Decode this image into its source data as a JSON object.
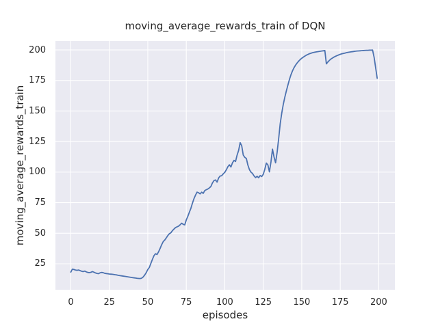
{
  "chart_data": {
    "type": "line",
    "title": "moving_average_rewards_train of DQN",
    "xlabel": "episodes",
    "ylabel": "moving_average_rewards_train",
    "legend": null,
    "grid": true,
    "plot_bg_color": "#EAEAF2",
    "grid_color": "#FFFFFF",
    "line_color": "#4C72B0",
    "text_color": "#262626",
    "xlim": [
      -10.0,
      210.5
    ],
    "ylim": [
      3.75,
      207.3
    ],
    "xticks": [
      0,
      25,
      50,
      75,
      100,
      125,
      150,
      175,
      200
    ],
    "yticks": [
      25,
      50,
      75,
      100,
      125,
      150,
      175,
      200
    ],
    "x_start": 0,
    "x_step": 1,
    "series": [
      {
        "name": "moving_average_rewards_train",
        "values": [
          18.2,
          20.6,
          20.3,
          19.9,
          19.6,
          19.9,
          19.4,
          18.9,
          18.6,
          19.0,
          18.4,
          17.9,
          17.7,
          18.0,
          18.6,
          18.1,
          17.5,
          17.1,
          16.9,
          17.6,
          17.9,
          17.7,
          17.2,
          17.0,
          16.8,
          16.6,
          16.5,
          16.4,
          16.2,
          16.0,
          15.8,
          15.5,
          15.3,
          15.1,
          14.9,
          14.7,
          14.5,
          14.3,
          14.1,
          13.9,
          13.7,
          13.5,
          13.3,
          13.1,
          13.0,
          12.9,
          13.2,
          14.2,
          15.8,
          17.8,
          20.3,
          22.0,
          25.3,
          28.6,
          31.6,
          33.2,
          32.6,
          34.8,
          37.6,
          40.6,
          43.1,
          44.4,
          46.2,
          48.1,
          49.6,
          50.4,
          52.1,
          53.4,
          54.6,
          55.2,
          55.8,
          56.9,
          58.2,
          57.3,
          56.8,
          60.9,
          63.8,
          67.2,
          70.4,
          74.6,
          78.3,
          81.2,
          83.6,
          83.1,
          82.2,
          83.6,
          82.6,
          84.9,
          85.6,
          86.2,
          87.1,
          88.3,
          91.2,
          93.1,
          93.6,
          91.8,
          95.2,
          96.8,
          97.1,
          98.6,
          99.8,
          101.9,
          104.4,
          106.0,
          104.2,
          107.6,
          109.6,
          108.7,
          113.9,
          117.8,
          124.1,
          121.6,
          114.0,
          112.1,
          111.2,
          105.8,
          102.1,
          100.0,
          98.9,
          96.9,
          95.5,
          96.6,
          95.4,
          97.2,
          96.4,
          98.2,
          102.3,
          107.4,
          105.9,
          100.2,
          108.3,
          118.8,
          112.4,
          107.6,
          116.2,
          127.3,
          139.6,
          148.2,
          155.4,
          161.3,
          166.4,
          171.2,
          175.8,
          179.7,
          182.9,
          185.5,
          187.6,
          189.3,
          190.8,
          192.1,
          193.2,
          194.1,
          194.9,
          195.7,
          196.3,
          196.9,
          197.3,
          197.7,
          198.0,
          198.3,
          198.5,
          198.7,
          198.9,
          199.1,
          199.3,
          199.5,
          188.6,
          190.2,
          191.5,
          192.6,
          193.4,
          194.2,
          194.8,
          195.4,
          195.9,
          196.4,
          196.8,
          197.1,
          197.4,
          197.7,
          198.0,
          198.2,
          198.4,
          198.6,
          198.8,
          199.0,
          199.1,
          199.2,
          199.3,
          199.4,
          199.5,
          199.6,
          199.7,
          199.7,
          199.8,
          199.8,
          199.9,
          194.0,
          185.5,
          176.8
        ]
      }
    ]
  }
}
